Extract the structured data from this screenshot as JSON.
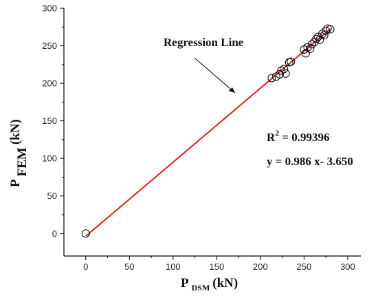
{
  "chart_data": {
    "type": "scatter",
    "xlabel": {
      "main": "P",
      "sub": "DSM",
      "unit": "(kN)"
    },
    "ylabel": {
      "main": "P",
      "sub": "FEM",
      "unit": "(kN)"
    },
    "xlim": [
      -25,
      315
    ],
    "ylim": [
      -30,
      300
    ],
    "xticks": [
      0,
      50,
      100,
      150,
      200,
      250,
      300
    ],
    "yticks": [
      0,
      50,
      100,
      150,
      200,
      250,
      300
    ],
    "points": [
      {
        "x": 0,
        "y": 0
      },
      {
        "x": 213,
        "y": 207
      },
      {
        "x": 218,
        "y": 209
      },
      {
        "x": 222,
        "y": 212
      },
      {
        "x": 224,
        "y": 217
      },
      {
        "x": 227,
        "y": 219
      },
      {
        "x": 229,
        "y": 213
      },
      {
        "x": 233,
        "y": 228
      },
      {
        "x": 235,
        "y": 229
      },
      {
        "x": 250,
        "y": 245
      },
      {
        "x": 252,
        "y": 240
      },
      {
        "x": 254,
        "y": 248
      },
      {
        "x": 257,
        "y": 246
      },
      {
        "x": 259,
        "y": 252
      },
      {
        "x": 262,
        "y": 255
      },
      {
        "x": 264,
        "y": 259
      },
      {
        "x": 266,
        "y": 262
      },
      {
        "x": 268,
        "y": 258
      },
      {
        "x": 271,
        "y": 266
      },
      {
        "x": 273,
        "y": 264
      },
      {
        "x": 275,
        "y": 270
      },
      {
        "x": 277,
        "y": 273
      },
      {
        "x": 280,
        "y": 272
      }
    ],
    "regression": {
      "label": "Regression Line",
      "slope": 0.986,
      "intercept": -3.65,
      "x_range": [
        0,
        280
      ],
      "color": "#e11b1b",
      "r2_text": "= 0.99396",
      "r_symbol": "R",
      "r_exp": "2",
      "equation": "y = 0.986 x- 3.650"
    }
  }
}
